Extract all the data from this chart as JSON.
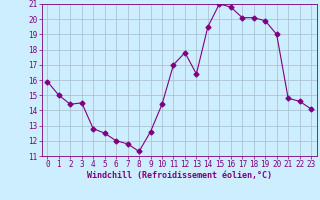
{
  "x": [
    0,
    1,
    2,
    3,
    4,
    5,
    6,
    7,
    8,
    9,
    10,
    11,
    12,
    13,
    14,
    15,
    16,
    17,
    18,
    19,
    20,
    21,
    22,
    23
  ],
  "y": [
    15.9,
    15.0,
    14.4,
    14.5,
    12.8,
    12.5,
    12.0,
    11.8,
    11.3,
    12.6,
    14.4,
    17.0,
    17.8,
    16.4,
    19.5,
    21.0,
    20.8,
    20.1,
    20.1,
    19.9,
    19.0,
    14.8,
    14.6,
    14.1
  ],
  "line_color": "#800080",
  "marker": "D",
  "marker_size": 2.5,
  "bg_color": "#cceeff",
  "grid_color": "#aabbcc",
  "xlabel": "Windchill (Refroidissement éolien,°C)",
  "xlabel_color": "#800080",
  "tick_color": "#800080",
  "label_color": "#800080",
  "ylim": [
    11,
    21
  ],
  "xlim": [
    -0.5,
    23.5
  ],
  "yticks": [
    11,
    12,
    13,
    14,
    15,
    16,
    17,
    18,
    19,
    20,
    21
  ],
  "xticks": [
    0,
    1,
    2,
    3,
    4,
    5,
    6,
    7,
    8,
    9,
    10,
    11,
    12,
    13,
    14,
    15,
    16,
    17,
    18,
    19,
    20,
    21,
    22,
    23
  ],
  "tick_fontsize": 5.5,
  "xlabel_fontsize": 6.0
}
